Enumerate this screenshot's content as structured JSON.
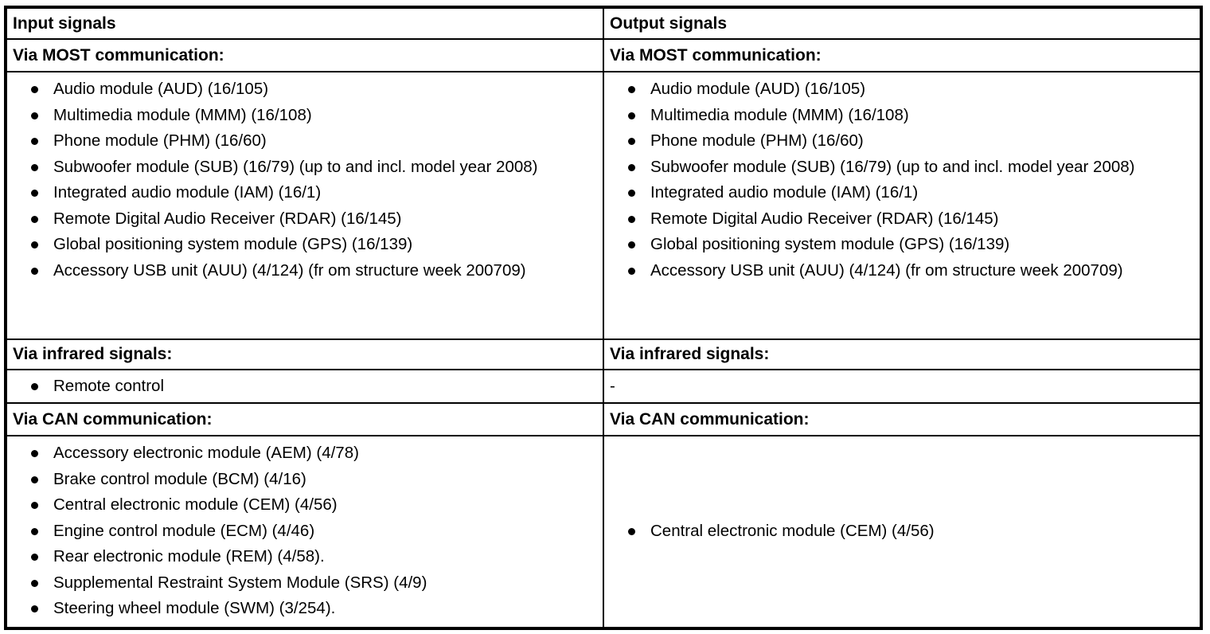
{
  "colors": {
    "border": "#000000",
    "text": "#000000",
    "background": "#ffffff"
  },
  "table": {
    "input_column": {
      "header": "Input signals",
      "most": {
        "heading": "Via MOST communication:",
        "items": [
          "Audio module (AUD) (16/105)",
          "Multimedia module (MMM) (16/108)",
          "Phone module (PHM) (16/60)",
          "Subwoofer module (SUB) (16/79) (up to and incl. model year 2008)",
          "Integrated audio module (IAM) (16/1)",
          "Remote Digital Audio Receiver (RDAR) (16/145)",
          "Global positioning system module (GPS) (16/139)",
          "Accessory USB unit (AUU) (4/124) (fr om structure week 200709)"
        ]
      },
      "infrared": {
        "heading": "Via infrared signals:",
        "items": [
          "Remote control"
        ]
      },
      "can": {
        "heading": "Via CAN communication:",
        "items": [
          "Accessory electronic module (AEM) (4/78)",
          "Brake control module (BCM) (4/16)",
          "Central electronic module (CEM) (4/56)",
          "Engine control module (ECM) (4/46)",
          "Rear electronic module (REM) (4/58).",
          "Supplemental Restraint System Module (SRS) (4/9)",
          "Steering wheel module (SWM) (3/254)."
        ]
      }
    },
    "output_column": {
      "header": "Output signals",
      "most": {
        "heading": "Via MOST communication:",
        "items": [
          "Audio module (AUD) (16/105)",
          "Multimedia module (MMM) (16/108)",
          "Phone module (PHM) (16/60)",
          "Subwoofer module (SUB) (16/79) (up to and incl. model year 2008)",
          "Integrated audio module (IAM) (16/1)",
          "Remote Digital Audio Receiver (RDAR) (16/145)",
          "Global positioning system module (GPS) (16/139)",
          "Accessory USB unit (AUU) (4/124) (fr om structure week 200709)"
        ]
      },
      "infrared": {
        "heading": "Via infrared signals:",
        "no_signal": "-"
      },
      "can": {
        "heading": "Via CAN communication:",
        "items": [
          "Central electronic module (CEM) (4/56)"
        ]
      }
    }
  }
}
